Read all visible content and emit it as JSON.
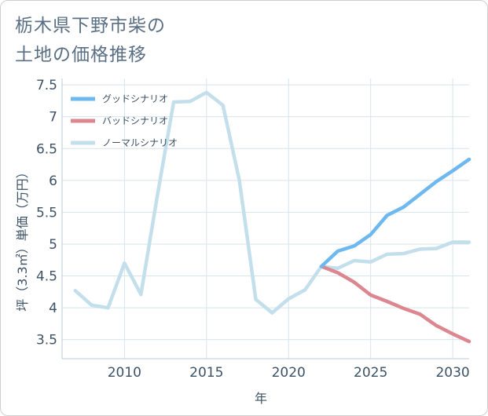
{
  "title": {
    "line1": "栃木県下野市柴の",
    "line2": "土地の価格推移"
  },
  "colors": {
    "good": "#6db8ee",
    "bad": "#dc8690",
    "normal": "#c4dfec",
    "grid": "#d6e4ec",
    "text": "#3d5266"
  },
  "chart_data": {
    "type": "line",
    "xlabel": "年",
    "ylabel": "坪（3.3㎡）単価（万円）",
    "xlim": [
      2006.2,
      2031
    ],
    "ylim": [
      3.2,
      7.6
    ],
    "xticks": [
      2010,
      2015,
      2020,
      2025,
      2030
    ],
    "xtick_labels": [
      "2010",
      "2015",
      "2020",
      "2025",
      "2030"
    ],
    "yticks": [
      3.5,
      4,
      4.5,
      5,
      5.5,
      6,
      6.5,
      7,
      7.5
    ],
    "ytick_labels": [
      "3.5",
      "4",
      "4.5",
      "5",
      "5.5",
      "6",
      "6.5",
      "7",
      "7.5"
    ],
    "legend_position": "top-left",
    "series": [
      {
        "key": "good",
        "name": "グッドシナリオ",
        "x": [
          2022,
          2023,
          2024,
          2025,
          2026,
          2027,
          2028,
          2029,
          2030,
          2031
        ],
        "y": [
          4.65,
          4.89,
          4.97,
          5.15,
          5.45,
          5.58,
          5.78,
          5.98,
          6.15,
          6.33
        ]
      },
      {
        "key": "bad",
        "name": "バッドシナリオ",
        "x": [
          2022,
          2023,
          2024,
          2025,
          2026,
          2027,
          2028,
          2029,
          2030,
          2031
        ],
        "y": [
          4.65,
          4.55,
          4.4,
          4.2,
          4.1,
          3.99,
          3.9,
          3.72,
          3.59,
          3.47
        ]
      },
      {
        "key": "normal",
        "name": "ノーマルシナリオ",
        "x": [
          2007,
          2008,
          2009,
          2010,
          2011,
          2012,
          2013,
          2014,
          2015,
          2016,
          2017,
          2018,
          2019,
          2020,
          2021,
          2022,
          2023,
          2024,
          2025,
          2026,
          2027,
          2028,
          2029,
          2030,
          2031
        ],
        "y": [
          4.27,
          4.04,
          4.0,
          4.7,
          4.21,
          5.75,
          7.23,
          7.24,
          7.38,
          7.18,
          6.0,
          4.13,
          3.92,
          4.14,
          4.28,
          4.65,
          4.62,
          4.74,
          4.72,
          4.84,
          4.85,
          4.92,
          4.93,
          5.03,
          5.03
        ]
      }
    ]
  }
}
